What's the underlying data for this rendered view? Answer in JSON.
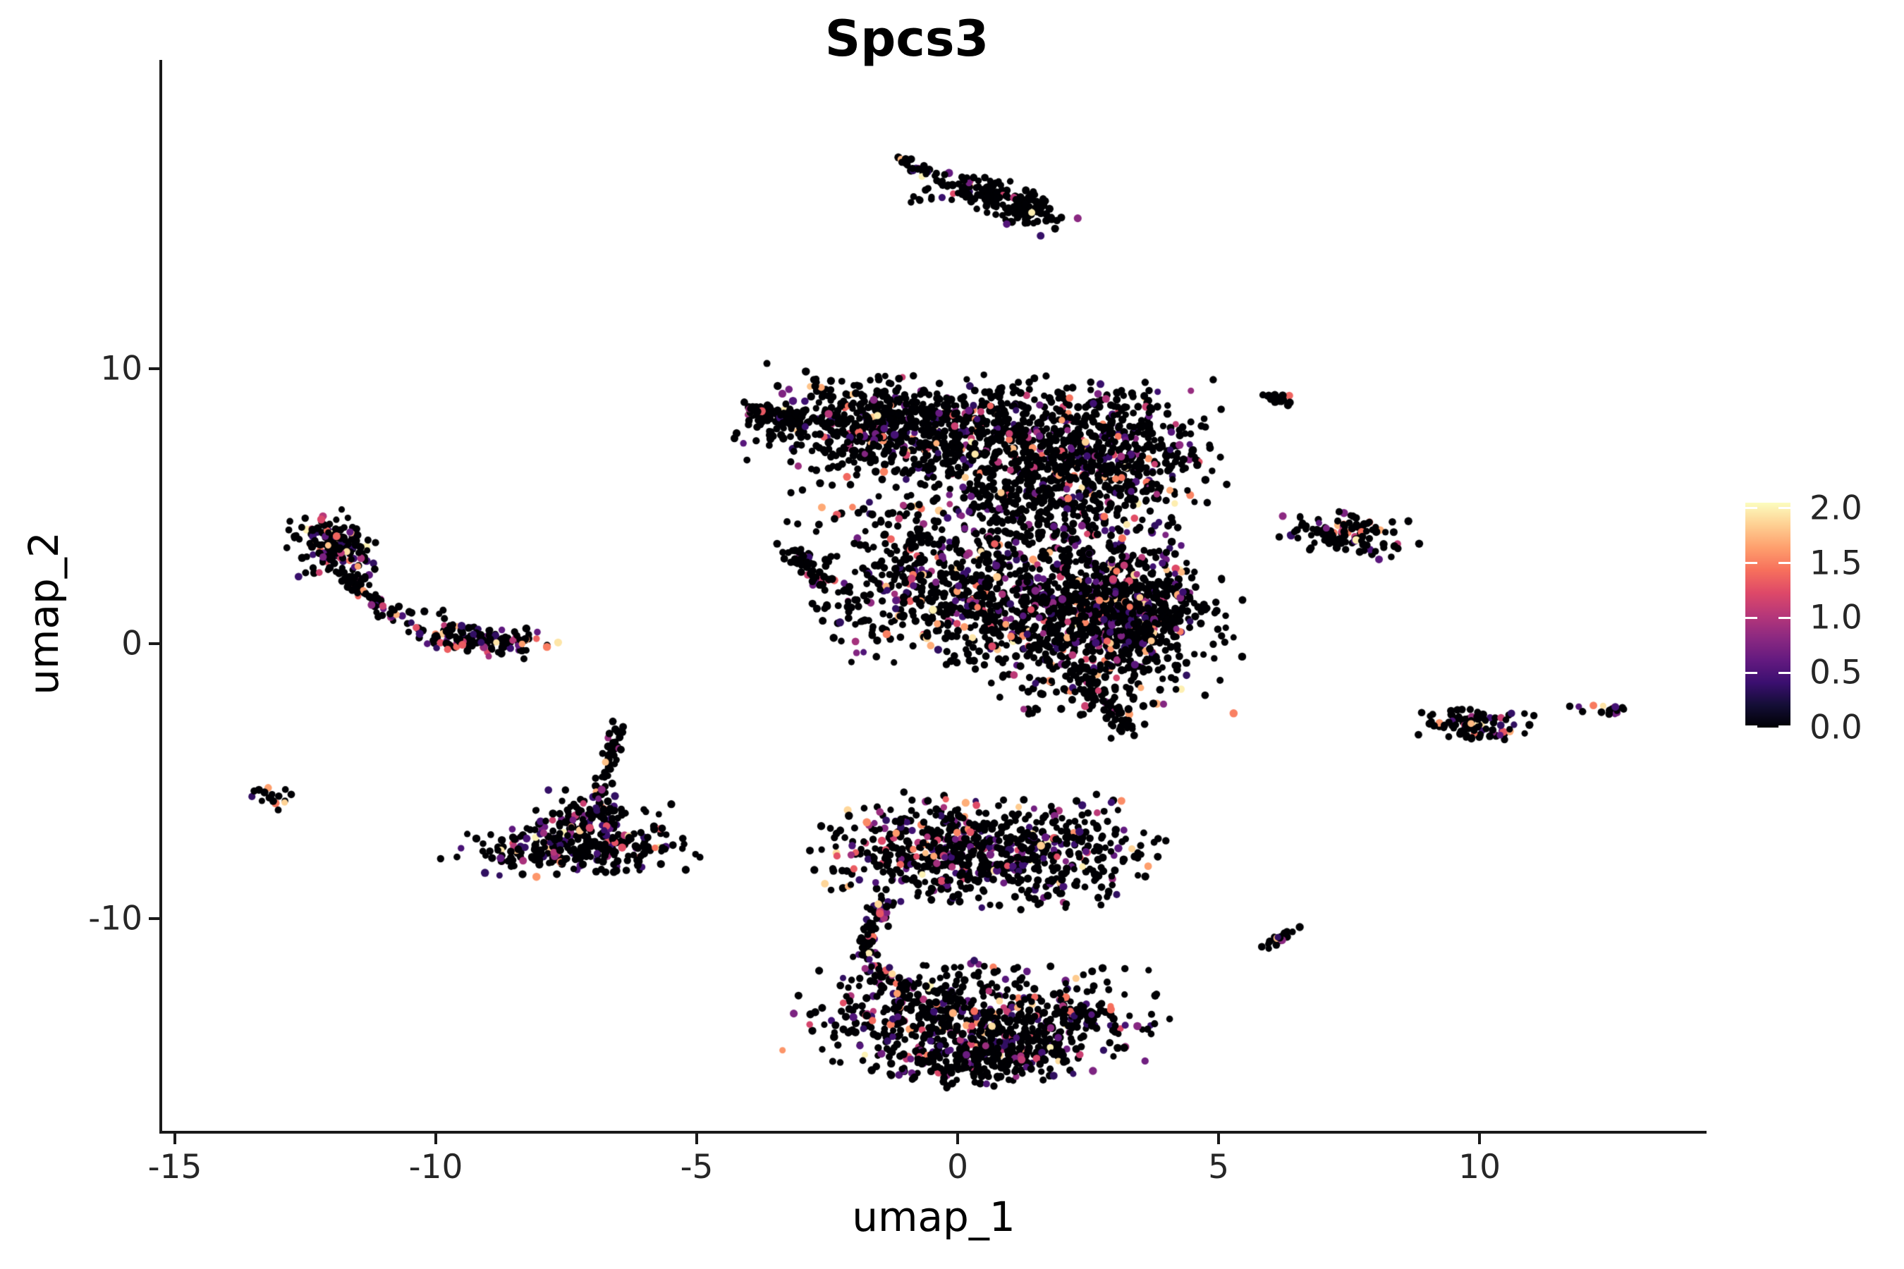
{
  "title": "Spcs3",
  "axes": {
    "x": {
      "label": "umap_1",
      "tick_labels": [
        "-15",
        "-10",
        "-5",
        "0",
        "5",
        "10"
      ]
    },
    "y": {
      "label": "umap_2",
      "tick_labels": [
        "10",
        "0",
        "-10"
      ]
    }
  },
  "colorbar": {
    "tick_labels": [
      "2.0",
      "1.5",
      "1.0",
      "0.5",
      "0.0"
    ],
    "tick_values": [
      2.0,
      1.5,
      1.0,
      0.5,
      0.0
    ],
    "vmin": 0.0,
    "vmax": 2.05,
    "stops": [
      {
        "t": 0.0,
        "color": "#000004"
      },
      {
        "t": 0.1,
        "color": "#140e36"
      },
      {
        "t": 0.2,
        "color": "#3b0f70"
      },
      {
        "t": 0.3,
        "color": "#641a80"
      },
      {
        "t": 0.4,
        "color": "#8c2981"
      },
      {
        "t": 0.5,
        "color": "#b73779"
      },
      {
        "t": 0.6,
        "color": "#de4968"
      },
      {
        "t": 0.7,
        "color": "#f7705c"
      },
      {
        "t": 0.8,
        "color": "#fe9f6d"
      },
      {
        "t": 0.9,
        "color": "#fecf92"
      },
      {
        "t": 1.0,
        "color": "#fcfdbf"
      }
    ]
  },
  "chart_data": {
    "type": "scatter",
    "title": "Spcs3",
    "xlabel": "umap_1",
    "ylabel": "umap_2",
    "xlim": [
      -15.27,
      14.35
    ],
    "ylim": [
      -17.77,
      21.23
    ],
    "x_ticks": [
      -15,
      -10,
      -5,
      0,
      5,
      10
    ],
    "y_ticks": [
      10,
      0,
      -10
    ],
    "grid": false,
    "legend_position": "right",
    "color_scale": {
      "name": "magma",
      "domain": [
        0,
        2.05
      ],
      "legend_ticks": [
        2.0,
        1.5,
        1.0,
        0.5,
        0.0
      ]
    },
    "point_count_approx": 6800,
    "expression_value_range": [
      0.35,
      2.0
    ],
    "clusters": [
      {
        "name": "top-streak",
        "kind": "streak",
        "x1": -1.08,
        "y1": 17.6,
        "x2": -0.52,
        "y2": 17.1,
        "w": 0.07,
        "n": 32,
        "p": 0.22
      },
      {
        "name": "top-sparse-dots",
        "kind": "blob",
        "cx": -0.75,
        "cy": 16.15,
        "sx": 0.38,
        "sy": 0.22,
        "rot": 0,
        "n": 7,
        "p": 0.3
      },
      {
        "name": "top-main-west",
        "kind": "blob",
        "cx": 0.3,
        "cy": 16.55,
        "sx": 0.5,
        "sy": 0.22,
        "rot": -15,
        "n": 85,
        "p": 0.1
      },
      {
        "name": "top-main-east",
        "kind": "blob",
        "cx": 1.2,
        "cy": 15.8,
        "sx": 0.5,
        "sy": 0.3,
        "rot": -28,
        "n": 100,
        "p": 0.12
      },
      {
        "name": "central-beak",
        "kind": "streak",
        "x1": -4.05,
        "y1": 8.55,
        "x2": -2.95,
        "y2": 8.05,
        "w": 0.16,
        "n": 70,
        "p": 0.15
      },
      {
        "name": "central-top-left",
        "kind": "blob",
        "cx": -1.7,
        "cy": 7.9,
        "sx": 1.05,
        "sy": 0.8,
        "rot": -10,
        "n": 430,
        "p": 0.14
      },
      {
        "name": "central-top-mid",
        "kind": "blob",
        "cx": 0.6,
        "cy": 7.7,
        "sx": 1.35,
        "sy": 0.9,
        "rot": 0,
        "n": 520,
        "p": 0.14
      },
      {
        "name": "central-top-right",
        "kind": "blob",
        "cx": 2.95,
        "cy": 6.9,
        "sx": 0.95,
        "sy": 1.15,
        "rot": 0,
        "n": 430,
        "p": 0.16
      },
      {
        "name": "central-neck",
        "kind": "blob",
        "cx": 1.6,
        "cy": 5.6,
        "sx": 1.15,
        "sy": 0.8,
        "rot": 0,
        "n": 200,
        "p": 0.16
      },
      {
        "name": "central-mid-sparse",
        "kind": "blob",
        "cx": 0.55,
        "cy": 4.2,
        "sx": 1.6,
        "sy": 1.35,
        "rot": 0,
        "n": 360,
        "p": 0.17
      },
      {
        "name": "central-left-blob",
        "kind": "streak",
        "x1": -3.3,
        "y1": 3.5,
        "x2": -2.45,
        "y2": 2.2,
        "w": 0.15,
        "n": 60,
        "p": 0.12
      },
      {
        "name": "central-left-trail",
        "kind": "streak",
        "x1": -2.35,
        "y1": 1.95,
        "x2": -1.75,
        "y2": 1.4,
        "w": 0.1,
        "n": 9,
        "p": 0.1
      },
      {
        "name": "central-mid-low",
        "kind": "blob",
        "cx": -0.35,
        "cy": 1.6,
        "sx": 1.1,
        "sy": 1.0,
        "rot": 0,
        "n": 330,
        "p": 0.18
      },
      {
        "name": "central-right-lobe",
        "kind": "blob",
        "cx": 2.35,
        "cy": 1.0,
        "sx": 1.3,
        "sy": 1.5,
        "rot": 0,
        "n": 950,
        "p": 0.2
      },
      {
        "name": "central-right-bulge",
        "kind": "blob",
        "cx": 3.4,
        "cy": 1.1,
        "sx": 0.55,
        "sy": 0.95,
        "rot": 0,
        "n": 280,
        "p": 0.2
      },
      {
        "name": "central-south-tail",
        "kind": "streak",
        "x1": 2.35,
        "y1": -0.9,
        "x2": 3.3,
        "y2": -3.3,
        "w": 0.17,
        "n": 70,
        "p": 0.12
      },
      {
        "name": "left-hook-head",
        "kind": "blob",
        "cx": -11.9,
        "cy": 3.55,
        "sx": 0.4,
        "sy": 0.55,
        "rot": 12,
        "n": 175,
        "p": 0.3
      },
      {
        "name": "left-hook-tail",
        "kind": "streak",
        "x1": -11.8,
        "y1": 2.7,
        "x2": -10.85,
        "y2": 0.95,
        "w": 0.12,
        "n": 70,
        "p": 0.18
      },
      {
        "name": "left-gap-dots",
        "kind": "blob",
        "cx": -10.25,
        "cy": 1.05,
        "sx": 0.28,
        "sy": 0.38,
        "rot": 0,
        "n": 8,
        "p": 0.15
      },
      {
        "name": "left-chain",
        "kind": "blob",
        "cx": -9.1,
        "cy": 0.15,
        "sx": 0.62,
        "sy": 0.27,
        "rot": -10,
        "n": 150,
        "p": 0.38
      },
      {
        "name": "far-left-tiny",
        "kind": "blob",
        "cx": -13.15,
        "cy": -5.6,
        "sx": 0.22,
        "sy": 0.16,
        "rot": -25,
        "n": 16,
        "p": 0.2
      },
      {
        "name": "triangle-base",
        "kind": "blob",
        "cx": -7.4,
        "cy": -7.5,
        "sx": 1.05,
        "sy": 0.42,
        "rot": 0,
        "n": 240,
        "p": 0.27
      },
      {
        "name": "triangle-upper",
        "kind": "blob",
        "cx": -7.0,
        "cy": -6.55,
        "sx": 0.6,
        "sy": 0.5,
        "rot": -20,
        "n": 140,
        "p": 0.22
      },
      {
        "name": "triangle-apex-tail",
        "kind": "streak",
        "x1": -6.85,
        "y1": -5.6,
        "x2": -6.45,
        "y2": -2.85,
        "w": 0.09,
        "n": 48,
        "p": 0.12
      },
      {
        "name": "bottomC-upper-left",
        "kind": "blob",
        "cx": -0.55,
        "cy": -7.5,
        "sx": 1.0,
        "sy": 0.9,
        "rot": 0,
        "n": 380,
        "p": 0.24
      },
      {
        "name": "bottomC-upper-right",
        "kind": "blob",
        "cx": 1.5,
        "cy": -7.6,
        "sx": 1.1,
        "sy": 0.9,
        "rot": 0,
        "n": 380,
        "p": 0.2
      },
      {
        "name": "bottomC-west-arm",
        "kind": "streak",
        "x1": -1.5,
        "y1": -9.3,
        "x2": -1.8,
        "y2": -11.4,
        "w": 0.14,
        "n": 55,
        "p": 0.3
      },
      {
        "name": "bottomC-west-arm2",
        "kind": "streak",
        "x1": -1.75,
        "y1": -11.6,
        "x2": -1.0,
        "y2": -12.6,
        "w": 0.14,
        "n": 35,
        "p": 0.28
      },
      {
        "name": "bottomC-lower",
        "kind": "blob",
        "cx": 0.45,
        "cy": -13.8,
        "sx": 1.55,
        "sy": 0.95,
        "rot": -5,
        "n": 700,
        "p": 0.22
      },
      {
        "name": "bottomC-lower-dip",
        "kind": "blob",
        "cx": 0.2,
        "cy": -15.2,
        "sx": 0.85,
        "sy": 0.45,
        "rot": 0,
        "n": 150,
        "p": 0.18
      },
      {
        "name": "bottomC-lower-tail",
        "kind": "streak",
        "x1": 1.9,
        "y1": -13.2,
        "x2": 2.6,
        "y2": -13.6,
        "w": 0.12,
        "n": 40,
        "p": 0.2
      },
      {
        "name": "right-north-streak",
        "kind": "streak",
        "x1": 5.85,
        "y1": 9.05,
        "x2": 6.35,
        "y2": 8.75,
        "w": 0.08,
        "n": 26,
        "p": 0.12
      },
      {
        "name": "right-mid-cluster",
        "kind": "blob",
        "cx": 7.5,
        "cy": 3.95,
        "sx": 0.58,
        "sy": 0.35,
        "rot": -12,
        "n": 115,
        "p": 0.2
      },
      {
        "name": "right-low-cluster",
        "kind": "blob",
        "cx": 9.85,
        "cy": -2.9,
        "sx": 0.5,
        "sy": 0.3,
        "rot": -8,
        "n": 90,
        "p": 0.22
      },
      {
        "name": "far-right-small",
        "kind": "blob",
        "cx": 12.3,
        "cy": -2.35,
        "sx": 0.26,
        "sy": 0.13,
        "rot": -15,
        "n": 16,
        "p": 0.28
      },
      {
        "name": "far-right-lone-dot",
        "kind": "blob",
        "cx": 11.75,
        "cy": -2.3,
        "sx": 0.05,
        "sy": 0.05,
        "rot": 0,
        "n": 1,
        "p": 0.0
      },
      {
        "name": "southeast-small",
        "kind": "streak",
        "x1": 5.95,
        "y1": -10.95,
        "x2": 6.45,
        "y2": -10.4,
        "w": 0.09,
        "n": 22,
        "p": 0.12
      }
    ]
  }
}
